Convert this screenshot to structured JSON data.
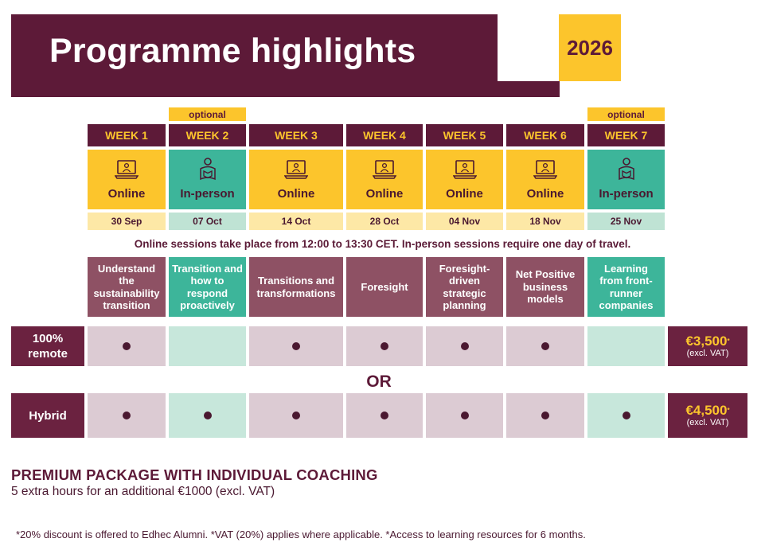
{
  "header": {
    "title": "Programme highlights",
    "year": "2026"
  },
  "optional_label": "optional",
  "weeks": [
    {
      "label": "WEEK 1",
      "mode": "Online",
      "date": "30 Sep",
      "topic": "Understand the sustainability transition",
      "remote": true,
      "hybrid": true
    },
    {
      "label": "WEEK 2",
      "mode": "In-person",
      "date": "07 Oct",
      "topic": "Transition and how to respond proactively",
      "optional": true,
      "remote": false,
      "hybrid": true
    },
    {
      "label": "WEEK 3",
      "mode": "Online",
      "date": "14 Oct",
      "topic": "Transitions and transformations",
      "remote": true,
      "hybrid": true
    },
    {
      "label": "WEEK 4",
      "mode": "Online",
      "date": "28 Oct",
      "topic": "Foresight",
      "remote": true,
      "hybrid": true
    },
    {
      "label": "WEEK 5",
      "mode": "Online",
      "date": "04 Nov",
      "topic": "Foresight-driven strategic planning",
      "remote": true,
      "hybrid": true
    },
    {
      "label": "WEEK 6",
      "mode": "Online",
      "date": "18 Nov",
      "topic": "Net Positive business models",
      "remote": true,
      "hybrid": true
    },
    {
      "label": "WEEK 7",
      "mode": "In-person",
      "date": "25 Nov",
      "topic": "Learning from front-runner companies",
      "optional": true,
      "remote": false,
      "hybrid": true
    }
  ],
  "session_note": "Online sessions take place from 12:00 to 13:30 CET. In-person sessions require one day of travel.",
  "options": {
    "remote": {
      "label_line1": "100%",
      "label_line2": "remote",
      "price": "€3,500",
      "price_mark": "*",
      "price_note": "(excl. VAT)"
    },
    "or_text": "OR",
    "hybrid": {
      "label": "Hybrid",
      "price": "€4,500",
      "price_mark": "*",
      "price_note": "(excl. VAT)"
    }
  },
  "premium": {
    "title": "PREMIUM PACKAGE WITH INDIVIDUAL COACHING",
    "subtitle": "5 extra hours for an additional €1000 (excl. VAT)"
  },
  "footnotes": "*20% discount is offered to Edhec Alumni.  *VAT (20%) applies where applicable.  *Access to learning resources for 6 months.",
  "colors": {
    "maroon": "#5d1a38",
    "yellow": "#fcc52c",
    "teal": "#3db59a",
    "mauve": "#8e5164"
  },
  "icons": {
    "online": "laptop-person-icon",
    "inperson": "person-book-icon"
  }
}
